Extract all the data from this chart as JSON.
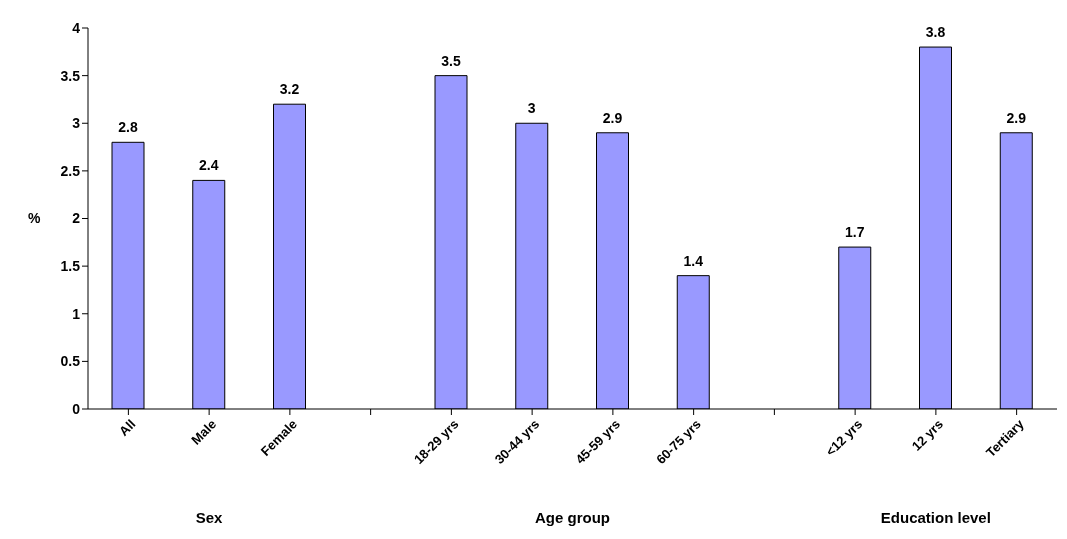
{
  "chart_data": {
    "type": "bar",
    "ylabel": "%",
    "categories": [
      "All",
      "Male",
      "Female",
      null,
      "18-29 yrs",
      "30-44 yrs",
      "45-59 yrs",
      "60-75 yrs",
      null,
      "<12 yrs",
      "12 yrs",
      "Tertiary"
    ],
    "values": [
      2.8,
      2.4,
      3.2,
      null,
      3.5,
      3,
      2.9,
      1.4,
      null,
      1.7,
      3.8,
      2.9
    ],
    "color": "#9999ff",
    "ylim": [
      0,
      4
    ],
    "yticks": [
      0,
      0.5,
      1,
      1.5,
      2,
      2.5,
      3,
      3.5,
      4
    ],
    "grid": false,
    "data_labels": true,
    "annotations": [
      "Sex",
      "Age group",
      "Education level"
    ]
  }
}
